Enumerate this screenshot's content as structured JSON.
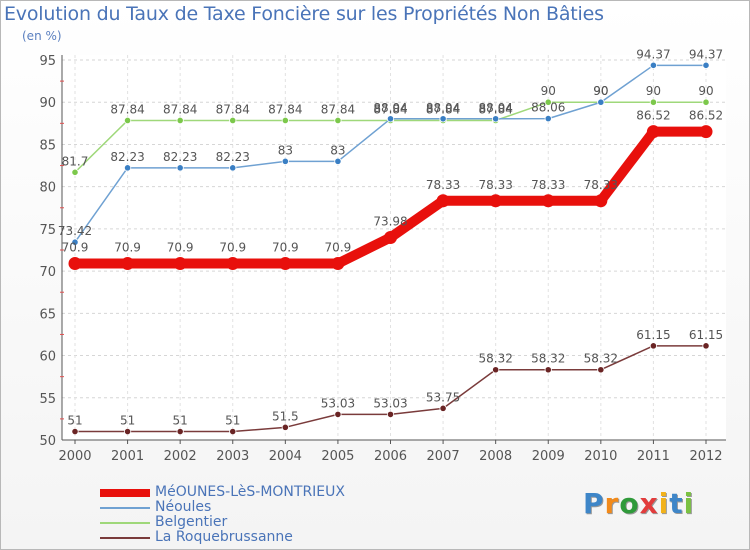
{
  "chart_data": {
    "type": "line",
    "title": "Evolution du Taux de Taxe Foncière sur les Propriétés Non Bâties",
    "unit_label": "(en %)",
    "xlabel": "",
    "ylabel": "",
    "categories": [
      "2000",
      "2001",
      "2002",
      "2003",
      "2004",
      "2005",
      "2006",
      "2007",
      "2008",
      "2009",
      "2010",
      "2011",
      "2012"
    ],
    "ylim": [
      50,
      95
    ],
    "yticks": [
      50,
      55,
      60,
      65,
      70,
      75,
      80,
      85,
      90,
      95
    ],
    "grid": true,
    "legend_position": "bottom-left",
    "series": [
      {
        "name": "MéOUNES-LèS-MONTRIEUX",
        "color": "#e8100c",
        "marker_color": "#e8100c",
        "thick": true,
        "values": [
          70.9,
          70.9,
          70.9,
          70.9,
          70.9,
          70.9,
          73.98,
          78.33,
          78.33,
          78.33,
          78.33,
          86.52,
          86.52
        ],
        "labels": [
          "70.9",
          "70.9",
          "70.9",
          "70.9",
          "70.9",
          "70.9",
          "73.98",
          "78.33",
          "78.33",
          "78.33",
          "78.33",
          "86.52",
          "86.52"
        ]
      },
      {
        "name": "Néoules",
        "color": "#6fa1d2",
        "marker_color": "#3a7fc4",
        "thick": false,
        "values": [
          73.42,
          82.23,
          82.23,
          82.23,
          83,
          83,
          88.04,
          88.04,
          88.04,
          88.06,
          90,
          94.37,
          94.37
        ],
        "labels": [
          "73.42",
          "82.23",
          "82.23",
          "82.23",
          "83",
          "83",
          "88.04",
          "88.04",
          "88.04",
          "88.06",
          "90",
          "94.37",
          "94.37"
        ]
      },
      {
        "name": "Belgentier",
        "color": "#9fd87a",
        "marker_color": "#7cc84b",
        "thick": false,
        "values": [
          81.7,
          87.84,
          87.84,
          87.84,
          87.84,
          87.84,
          87.84,
          87.84,
          87.84,
          90,
          90,
          90,
          90
        ],
        "labels": [
          "81.7",
          "87.84",
          "87.84",
          "87.84",
          "87.84",
          "87.84",
          "87.84",
          "87.84",
          "87.84",
          "90",
          "90",
          "90",
          "90"
        ]
      },
      {
        "name": "La Roquebrussanne",
        "color": "#7a3b3b",
        "marker_color": "#6a2424",
        "thick": false,
        "values": [
          51,
          51,
          51,
          51,
          51.5,
          53.03,
          53.03,
          53.75,
          58.32,
          58.32,
          58.32,
          61.15,
          61.15
        ],
        "labels": [
          "51",
          "51",
          "51",
          "51",
          "51.5",
          "53.03",
          "53.03",
          "53.75",
          "58.32",
          "58.32",
          "58.32",
          "61.15",
          "61.15"
        ]
      }
    ]
  },
  "branding": {
    "logo_letters": [
      "P",
      "r",
      "o",
      "x",
      "i",
      "t",
      "i"
    ],
    "logo_colors": [
      "#3e86c8",
      "#f28a1a",
      "#2f9a3a",
      "#e23c3c",
      "#f2b21a",
      "#3e86c8",
      "#7ac142"
    ]
  }
}
